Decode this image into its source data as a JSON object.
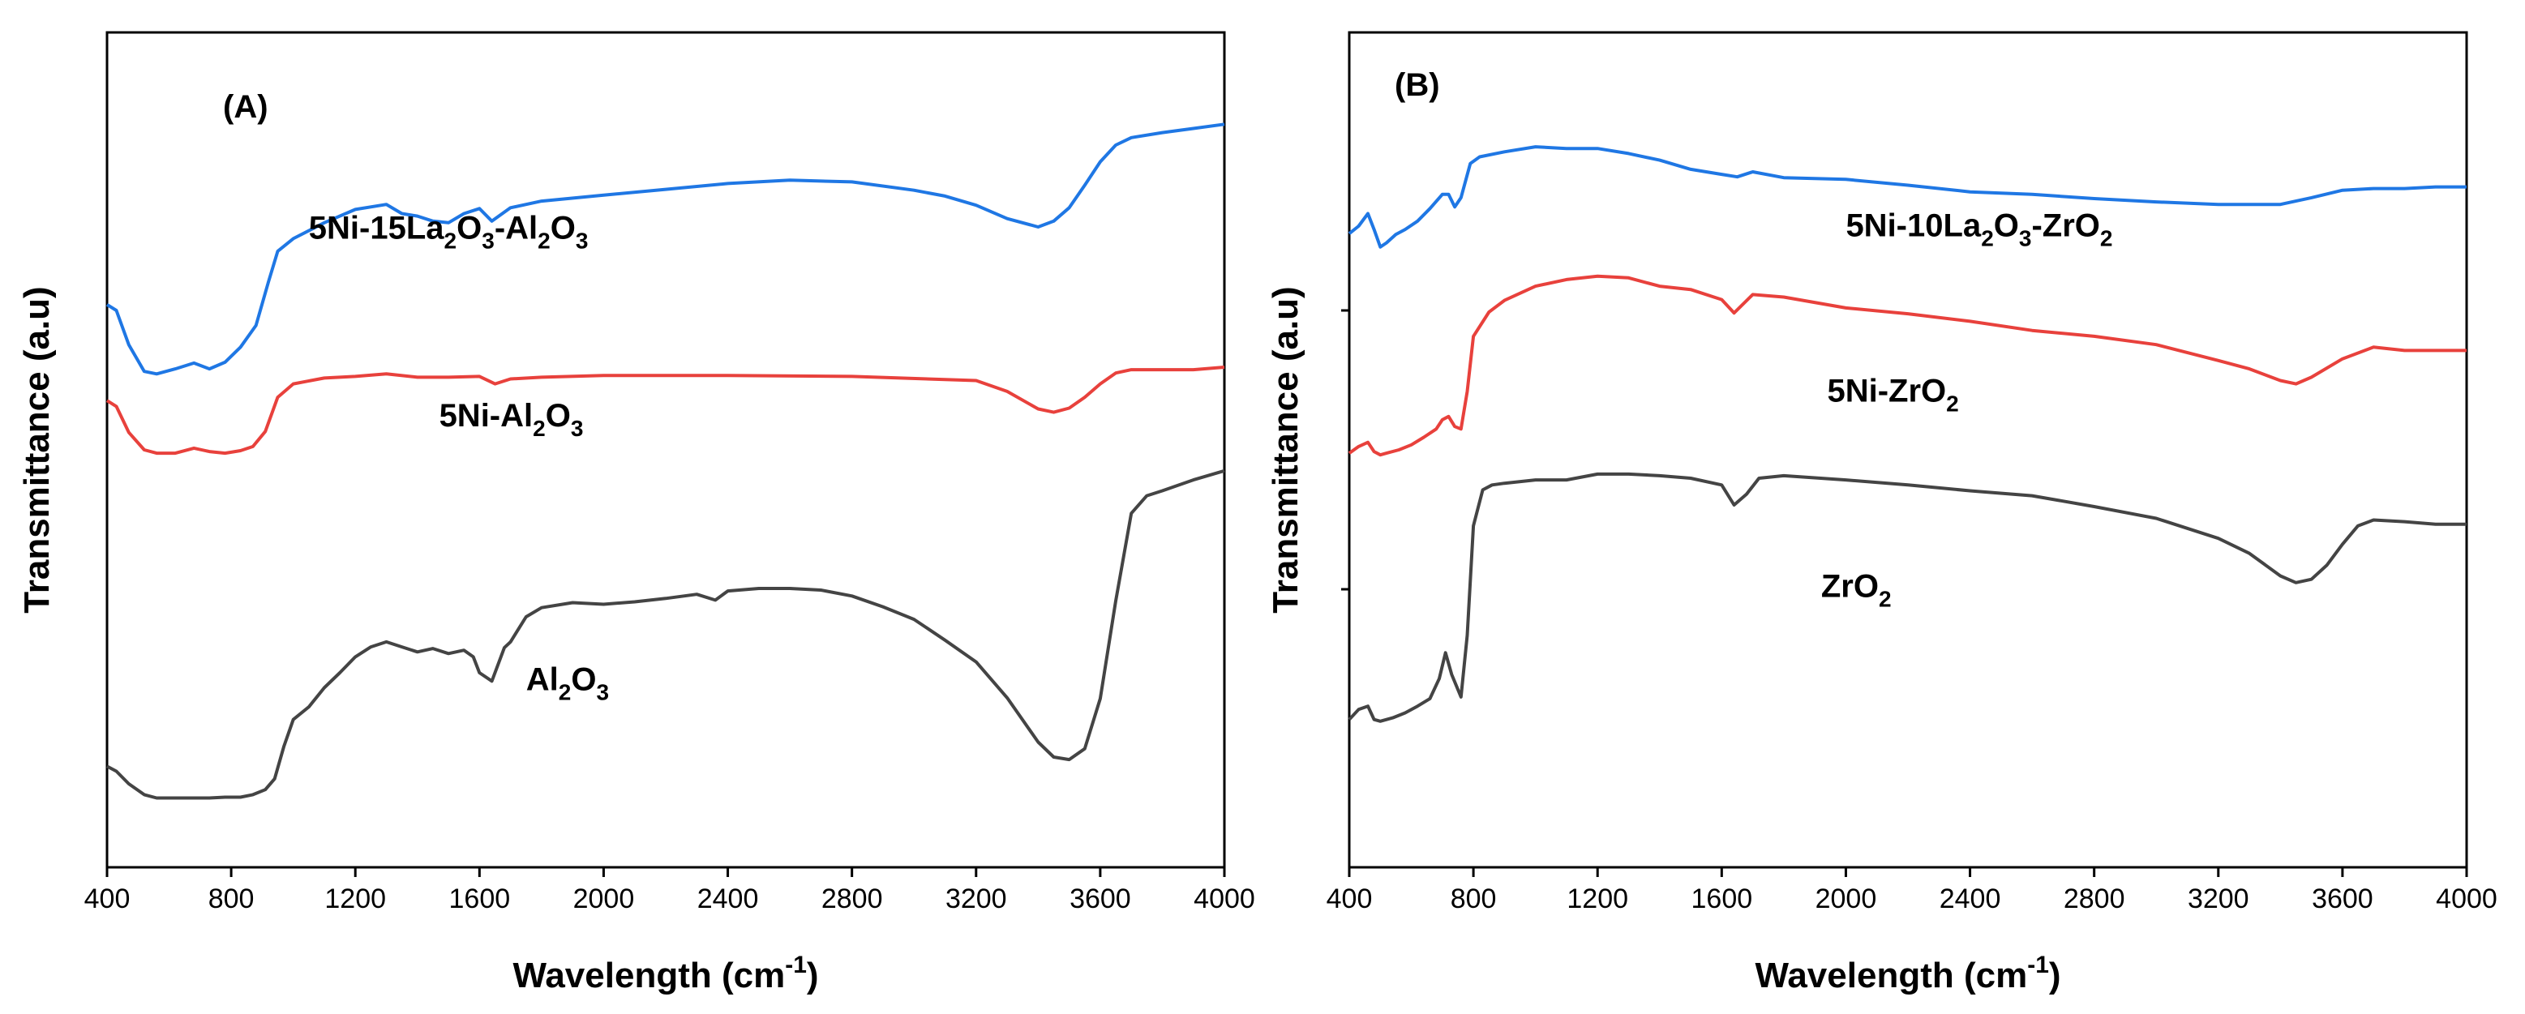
{
  "chart_data": [
    {
      "type": "line",
      "panel_label": "(A)",
      "xlabel": "Wavelength (cm",
      "xlabel_sup": "-1",
      "xlabel_end": ")",
      "ylabel": "Transmittance (a.u)",
      "xlim": [
        400,
        4000
      ],
      "ylim": [
        0,
        100
      ],
      "x_ticks": [
        400,
        800,
        1200,
        1600,
        2000,
        2400,
        2800,
        3200,
        3600,
        4000
      ],
      "x_tick_labels": [
        "400",
        "800",
        "1200",
        "1600",
        "2000",
        "2400",
        "2800",
        "3200",
        "3600",
        "4000"
      ],
      "y_ticks": [],
      "y_tick_labels": [],
      "series": [
        {
          "name": "5Ni-15La2O3-Al2O3",
          "label_parts": [
            [
              "5Ni-15La",
              ""
            ],
            [
              "2",
              "sub"
            ],
            [
              "O",
              ""
            ],
            [
              "3",
              "sub"
            ],
            [
              "-Al",
              ""
            ],
            [
              "2",
              "sub"
            ],
            [
              "O",
              ""
            ],
            [
              "3",
              "sub"
            ]
          ],
          "label_at": [
            1050,
            75.3
          ],
          "color": "#1f77e4",
          "x": [
            400,
            430,
            470,
            520,
            560,
            620,
            680,
            730,
            780,
            830,
            880,
            920,
            950,
            1000,
            1100,
            1200,
            1300,
            1350,
            1400,
            1450,
            1500,
            1550,
            1600,
            1640,
            1700,
            1800,
            2000,
            2200,
            2400,
            2600,
            2800,
            3000,
            3100,
            3200,
            3300,
            3400,
            3450,
            3500,
            3550,
            3600,
            3650,
            3700,
            3800,
            3900,
            4000
          ],
          "y": [
            67.4,
            66.7,
            62.6,
            59.4,
            59.1,
            59.7,
            60.4,
            59.7,
            60.5,
            62.3,
            64.9,
            70.1,
            73.8,
            75.3,
            77.2,
            78.8,
            79.4,
            78.3,
            78.0,
            77.4,
            77.2,
            78.3,
            78.9,
            77.4,
            79.0,
            79.8,
            80.5,
            81.2,
            81.9,
            82.3,
            82.1,
            81.1,
            80.4,
            79.3,
            77.7,
            76.7,
            77.4,
            79.0,
            81.7,
            84.5,
            86.5,
            87.4,
            88.0,
            88.5,
            89.0
          ]
        },
        {
          "name": "5Ni-Al2O3",
          "label_parts": [
            [
              "5Ni-Al",
              ""
            ],
            [
              "2",
              "sub"
            ],
            [
              "O",
              ""
            ],
            [
              "3",
              "sub"
            ]
          ],
          "label_at": [
            1470,
            52.8
          ],
          "color": "#e8413c",
          "x": [
            400,
            430,
            470,
            520,
            560,
            620,
            680,
            730,
            780,
            830,
            870,
            910,
            950,
            1000,
            1100,
            1200,
            1300,
            1400,
            1500,
            1600,
            1650,
            1700,
            1800,
            2000,
            2400,
            2800,
            3200,
            3300,
            3400,
            3450,
            3500,
            3550,
            3600,
            3650,
            3700,
            3800,
            3900,
            4000
          ],
          "y": [
            55.9,
            55.2,
            52.1,
            50.0,
            49.6,
            49.6,
            50.2,
            49.8,
            49.6,
            49.9,
            50.4,
            52.2,
            56.3,
            57.9,
            58.6,
            58.8,
            59.1,
            58.7,
            58.7,
            58.8,
            57.9,
            58.5,
            58.7,
            58.9,
            58.9,
            58.8,
            58.3,
            57.0,
            54.9,
            54.5,
            55.0,
            56.3,
            57.9,
            59.2,
            59.6,
            59.6,
            59.6,
            59.9
          ]
        },
        {
          "name": "Al2O3",
          "label_parts": [
            [
              "Al",
              ""
            ],
            [
              "2",
              "sub"
            ],
            [
              "O",
              ""
            ],
            [
              "3",
              "sub"
            ]
          ],
          "label_at": [
            1750,
            21.2
          ],
          "color": "#444444",
          "x": [
            400,
            430,
            470,
            520,
            560,
            620,
            680,
            730,
            780,
            830,
            870,
            910,
            940,
            970,
            1000,
            1050,
            1100,
            1150,
            1200,
            1250,
            1300,
            1350,
            1400,
            1450,
            1500,
            1550,
            1580,
            1600,
            1640,
            1680,
            1700,
            1750,
            1800,
            1900,
            2000,
            2100,
            2200,
            2300,
            2360,
            2400,
            2500,
            2600,
            2700,
            2800,
            2900,
            3000,
            3100,
            3200,
            3300,
            3400,
            3450,
            3500,
            3550,
            3600,
            3650,
            3700,
            3750,
            3800,
            3900,
            4000
          ],
          "y": [
            12.1,
            11.5,
            10.0,
            8.7,
            8.3,
            8.3,
            8.3,
            8.3,
            8.4,
            8.4,
            8.7,
            9.3,
            10.6,
            14.5,
            17.7,
            19.2,
            21.5,
            23.3,
            25.2,
            26.4,
            27.0,
            26.4,
            25.8,
            26.2,
            25.6,
            26.0,
            25.2,
            23.3,
            22.3,
            26.3,
            27.0,
            30.0,
            31.1,
            31.7,
            31.5,
            31.8,
            32.2,
            32.7,
            32.0,
            33.1,
            33.4,
            33.4,
            33.2,
            32.5,
            31.2,
            29.7,
            27.2,
            24.6,
            20.3,
            15.0,
            13.2,
            12.9,
            14.2,
            20.2,
            31.9,
            42.4,
            44.5,
            45.1,
            46.4,
            47.5
          ]
        }
      ]
    },
    {
      "type": "line",
      "panel_label": "(B)",
      "xlabel": "Wavelength (cm",
      "xlabel_sup": "-1",
      "xlabel_end": ")",
      "ylabel": "Transmittance (a.u)",
      "xlim": [
        400,
        4000
      ],
      "ylim": [
        0,
        100
      ],
      "x_ticks": [
        400,
        800,
        1200,
        1600,
        2000,
        2400,
        2800,
        3200,
        3600,
        4000
      ],
      "x_tick_labels": [
        "400",
        "800",
        "1200",
        "1600",
        "2000",
        "2400",
        "2800",
        "3200",
        "3600",
        "4000"
      ],
      "y_ticks": [
        33.3,
        66.7
      ],
      "y_tick_labels": [],
      "series": [
        {
          "name": "5Ni-10La2O3-ZrO2",
          "label_parts": [
            [
              "5Ni-10La",
              ""
            ],
            [
              "2",
              "sub"
            ],
            [
              "O",
              ""
            ],
            [
              "3",
              "sub"
            ],
            [
              "-ZrO",
              ""
            ],
            [
              "2",
              "sub"
            ]
          ],
          "label_at": [
            2000,
            75.6
          ],
          "color": "#1f77e4",
          "x": [
            400,
            430,
            460,
            480,
            500,
            520,
            550,
            580,
            620,
            660,
            700,
            720,
            740,
            760,
            790,
            820,
            900,
            1000,
            1100,
            1200,
            1300,
            1400,
            1500,
            1600,
            1650,
            1700,
            1800,
            2000,
            2200,
            2400,
            2600,
            2800,
            3000,
            3200,
            3300,
            3400,
            3500,
            3600,
            3700,
            3800,
            3900,
            4000
          ],
          "y": [
            75.9,
            76.8,
            78.3,
            76.4,
            74.3,
            74.8,
            75.8,
            76.4,
            77.4,
            78.9,
            80.6,
            80.6,
            79.1,
            80.2,
            84.3,
            85.1,
            85.7,
            86.3,
            86.1,
            86.1,
            85.5,
            84.7,
            83.6,
            83.0,
            82.7,
            83.3,
            82.6,
            82.4,
            81.7,
            80.9,
            80.6,
            80.1,
            79.7,
            79.4,
            79.4,
            79.4,
            80.2,
            81.1,
            81.3,
            81.3,
            81.5,
            81.5
          ]
        },
        {
          "name": "5Ni-ZrO2",
          "label_parts": [
            [
              "5Ni-ZrO",
              ""
            ],
            [
              "2",
              "sub"
            ]
          ],
          "label_at": [
            1940,
            55.8
          ],
          "color": "#e8413c",
          "x": [
            400,
            430,
            460,
            480,
            500,
            520,
            560,
            600,
            640,
            680,
            700,
            720,
            740,
            760,
            780,
            800,
            850,
            900,
            1000,
            1100,
            1200,
            1300,
            1400,
            1500,
            1600,
            1640,
            1700,
            1800,
            2000,
            2200,
            2400,
            2600,
            2800,
            3000,
            3200,
            3300,
            3400,
            3450,
            3500,
            3600,
            3700,
            3800,
            3900,
            4000
          ],
          "y": [
            49.6,
            50.4,
            50.9,
            49.8,
            49.4,
            49.6,
            50.0,
            50.6,
            51.5,
            52.5,
            53.6,
            54.0,
            52.8,
            52.5,
            57.0,
            63.6,
            66.5,
            67.9,
            69.6,
            70.4,
            70.8,
            70.6,
            69.6,
            69.2,
            68.0,
            66.4,
            68.6,
            68.3,
            67.0,
            66.3,
            65.4,
            64.3,
            63.6,
            62.6,
            60.7,
            59.7,
            58.3,
            57.9,
            58.7,
            60.9,
            62.3,
            61.9,
            61.9,
            61.9
          ]
        },
        {
          "name": "ZrO2",
          "label_parts": [
            [
              "ZrO",
              ""
            ],
            [
              "2",
              "sub"
            ]
          ],
          "label_at": [
            1920,
            32.4
          ],
          "color": "#444444",
          "x": [
            400,
            430,
            460,
            480,
            500,
            540,
            580,
            620,
            660,
            690,
            710,
            730,
            760,
            780,
            800,
            830,
            860,
            900,
            1000,
            1100,
            1200,
            1300,
            1400,
            1500,
            1600,
            1640,
            1680,
            1720,
            1800,
            2000,
            2200,
            2400,
            2600,
            2800,
            3000,
            3200,
            3300,
            3400,
            3450,
            3500,
            3550,
            3600,
            3650,
            3700,
            3800,
            3900,
            4000
          ],
          "y": [
            17.7,
            18.9,
            19.3,
            17.7,
            17.5,
            17.9,
            18.5,
            19.3,
            20.2,
            22.6,
            25.7,
            23.1,
            20.4,
            27.8,
            40.9,
            45.2,
            45.8,
            46.0,
            46.4,
            46.4,
            47.1,
            47.1,
            46.9,
            46.6,
            45.8,
            43.4,
            44.7,
            46.6,
            46.9,
            46.4,
            45.8,
            45.1,
            44.5,
            43.2,
            41.8,
            39.4,
            37.6,
            34.9,
            34.1,
            34.5,
            36.2,
            38.7,
            40.9,
            41.6,
            41.4,
            41.1,
            41.1
          ]
        }
      ]
    }
  ]
}
